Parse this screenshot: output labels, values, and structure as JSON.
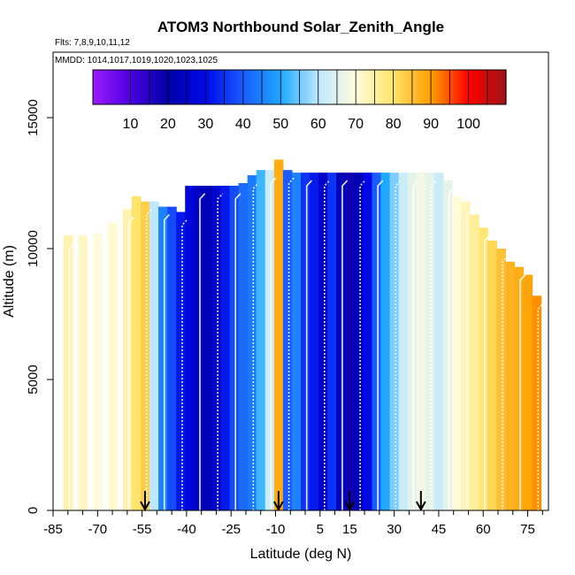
{
  "chart_data": {
    "type": "heatmap",
    "title": "ATOM3 Northbound Solar_Zenith_Angle",
    "flights_label": "Flts: 7,8,9,10,11,12",
    "dates_label": "MMDD: 1014,1017,1019,1020,1023,1025",
    "xlabel": "Latitude (deg N)",
    "ylabel": "Altitude (m)",
    "xlim": [
      -85,
      82
    ],
    "ylim": [
      0,
      17500
    ],
    "x_ticks": [
      -85,
      -70,
      -55,
      -40,
      -25,
      -10,
      5,
      15,
      30,
      45,
      60,
      75
    ],
    "x_minor_ticks": [
      -80,
      -75,
      -65,
      -60,
      -50,
      -45,
      -35,
      -30,
      -20,
      -15,
      -5,
      0,
      10,
      20,
      25,
      35,
      40,
      50,
      55,
      65,
      70,
      80
    ],
    "y_ticks": [
      0,
      5000,
      10000,
      15000
    ],
    "colorbar": {
      "ticks": [
        10,
        20,
        30,
        40,
        50,
        60,
        70,
        80,
        90,
        100
      ],
      "range": [
        0,
        110
      ],
      "stops": [
        {
          "v": 0,
          "c": "#9d1bff"
        },
        {
          "v": 10,
          "c": "#4b00e0"
        },
        {
          "v": 20,
          "c": "#0000a8"
        },
        {
          "v": 30,
          "c": "#0008e8"
        },
        {
          "v": 40,
          "c": "#1a5cff"
        },
        {
          "v": 50,
          "c": "#1ea8ff"
        },
        {
          "v": 60,
          "c": "#bde8ff"
        },
        {
          "v": 70,
          "c": "#fffcdc"
        },
        {
          "v": 80,
          "c": "#ffe46a"
        },
        {
          "v": 90,
          "c": "#ff9e00"
        },
        {
          "v": 100,
          "c": "#ff0000"
        },
        {
          "v": 110,
          "c": "#9e1414"
        }
      ]
    },
    "columns": [
      {
        "lat": -80,
        "top": 10500,
        "sza": 74
      },
      {
        "lat": -75,
        "top": 10500,
        "sza": 72
      },
      {
        "lat": -70,
        "top": 10600,
        "sza": 70
      },
      {
        "lat": -65,
        "top": 11000,
        "sza": 71
      },
      {
        "lat": -60,
        "top": 11500,
        "sza": 74
      },
      {
        "lat": -57,
        "top": 12000,
        "sza": 80
      },
      {
        "lat": -54,
        "top": 11800,
        "sza": 83
      },
      {
        "lat": -51,
        "top": 11800,
        "sza": 60
      },
      {
        "lat": -48,
        "top": 11600,
        "sza": 45
      },
      {
        "lat": -45,
        "top": 11600,
        "sza": 38
      },
      {
        "lat": -42,
        "top": 11400,
        "sza": 32
      },
      {
        "lat": -39,
        "top": 12400,
        "sza": 28
      },
      {
        "lat": -36,
        "top": 12400,
        "sza": 24
      },
      {
        "lat": -33,
        "top": 12400,
        "sza": 22
      },
      {
        "lat": -30,
        "top": 12400,
        "sza": 26
      },
      {
        "lat": -27,
        "top": 12400,
        "sza": 32
      },
      {
        "lat": -24,
        "top": 12400,
        "sza": 38
      },
      {
        "lat": -21,
        "top": 12500,
        "sza": 42
      },
      {
        "lat": -18,
        "top": 12800,
        "sza": 44
      },
      {
        "lat": -15,
        "top": 13000,
        "sza": 52
      },
      {
        "lat": -12,
        "top": 13000,
        "sza": 62
      },
      {
        "lat": -9,
        "top": 13400,
        "sza": 88
      },
      {
        "lat": -6,
        "top": 13000,
        "sza": 40
      },
      {
        "lat": -3,
        "top": 12900,
        "sza": 45
      },
      {
        "lat": 0,
        "top": 12900,
        "sza": 35
      },
      {
        "lat": 3,
        "top": 12900,
        "sza": 32
      },
      {
        "lat": 6,
        "top": 12900,
        "sza": 25
      },
      {
        "lat": 9,
        "top": 12900,
        "sza": 35
      },
      {
        "lat": 12,
        "top": 12900,
        "sza": 22
      },
      {
        "lat": 15,
        "top": 12900,
        "sza": 18
      },
      {
        "lat": 18,
        "top": 12900,
        "sza": 22
      },
      {
        "lat": 21,
        "top": 12900,
        "sza": 30
      },
      {
        "lat": 24,
        "top": 12900,
        "sza": 40
      },
      {
        "lat": 27,
        "top": 12900,
        "sza": 50
      },
      {
        "lat": 30,
        "top": 12900,
        "sza": 56
      },
      {
        "lat": 33,
        "top": 12900,
        "sza": 62
      },
      {
        "lat": 36,
        "top": 12900,
        "sza": 66
      },
      {
        "lat": 39,
        "top": 12900,
        "sza": 68
      },
      {
        "lat": 42,
        "top": 12900,
        "sza": 66
      },
      {
        "lat": 45,
        "top": 12900,
        "sza": 62
      },
      {
        "lat": 48,
        "top": 12600,
        "sza": 66
      },
      {
        "lat": 51,
        "top": 12000,
        "sza": 70
      },
      {
        "lat": 54,
        "top": 11800,
        "sza": 73
      },
      {
        "lat": 57,
        "top": 11300,
        "sza": 76
      },
      {
        "lat": 60,
        "top": 10800,
        "sza": 79
      },
      {
        "lat": 63,
        "top": 10300,
        "sza": 82
      },
      {
        "lat": 66,
        "top": 10000,
        "sza": 85
      },
      {
        "lat": 69,
        "top": 9500,
        "sza": 87
      },
      {
        "lat": 72,
        "top": 9300,
        "sza": 88
      },
      {
        "lat": 75,
        "top": 9000,
        "sza": 89
      },
      {
        "lat": 78,
        "top": 8200,
        "sza": 91
      }
    ],
    "markers": {
      "lats": [
        -54,
        -9,
        15,
        39
      ],
      "y": 0
    }
  }
}
